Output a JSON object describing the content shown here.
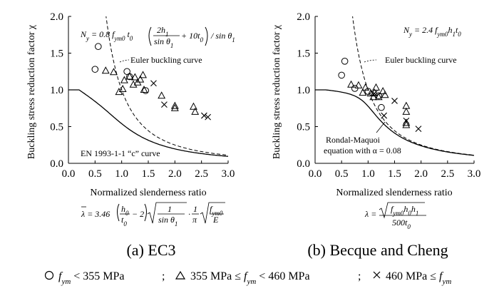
{
  "figure": {
    "caption_a": "(a) EC3",
    "caption_b": "(b) Becque and Cheng",
    "legend": {
      "circle_label": "f_ym < 355 MPa",
      "triangle_label": "355 MPa ≤ f_ym < 460 MPa",
      "cross_label": "460 MPa ≤ f_ym",
      "separator": ";"
    }
  },
  "chart_data": [
    {
      "type": "scatter",
      "panel": "a",
      "xlabel": "Normalized slenderness ratio",
      "ylabel": "Buckling stress reduction factor χ",
      "xlim": [
        0,
        3
      ],
      "ylim": [
        0,
        2
      ],
      "xticks": [
        "0.0",
        "0.5",
        "1.0",
        "1.5",
        "2.0",
        "2.5",
        "3.0"
      ],
      "yticks": [
        "0.0",
        "0.5",
        "1.0",
        "1.5",
        "2.0"
      ],
      "grid": false,
      "resistance_formula": "N_y = 0.8 f_ym0 t_0 (2h_1/sinθ_1 + 10t_0) / sinθ_1",
      "slenderness_formula": "λ̄ = 3.46 (h_0/t_0 − 2) √(1/sinθ_1) · (1/π) √(f_ym0/E)",
      "annotations": {
        "euler": "Euler buckling curve",
        "design": "EN 1993-1-1 “c” curve"
      },
      "design_alpha": 0.49,
      "series": [
        {
          "marker": "circle",
          "points": [
            [
              0.56,
              1.59
            ],
            [
              0.5,
              1.28
            ],
            [
              1.1,
              1.25
            ],
            [
              1.15,
              1.18
            ],
            [
              1.45,
              0.99
            ]
          ]
        },
        {
          "marker": "triangle",
          "points": [
            [
              0.7,
              1.26
            ],
            [
              0.85,
              1.24
            ],
            [
              0.95,
              0.97
            ],
            [
              1.02,
              1.01
            ],
            [
              1.05,
              1.13
            ],
            [
              1.15,
              1.18
            ],
            [
              1.22,
              1.07
            ],
            [
              1.25,
              1.17
            ],
            [
              1.3,
              1.1
            ],
            [
              1.35,
              1.14
            ],
            [
              1.4,
              1.2
            ],
            [
              1.42,
              1.0
            ],
            [
              1.75,
              0.92
            ],
            [
              2.0,
              0.78
            ],
            [
              2.0,
              0.75
            ],
            [
              2.35,
              0.77
            ],
            [
              2.38,
              0.7
            ]
          ]
        },
        {
          "marker": "cross",
          "points": [
            [
              1.6,
              1.09
            ],
            [
              1.8,
              0.8
            ],
            [
              2.55,
              0.65
            ],
            [
              2.62,
              0.63
            ]
          ]
        }
      ]
    },
    {
      "type": "scatter",
      "panel": "b",
      "xlabel": "Normalized slenderness ratio",
      "ylabel": "Buckling stress reduction factor χ",
      "xlim": [
        0,
        3
      ],
      "ylim": [
        0,
        2
      ],
      "xticks": [
        "0.0",
        "0.5",
        "1.0",
        "1.5",
        "2.0",
        "2.5",
        "3.0"
      ],
      "yticks": [
        "0.0",
        "0.5",
        "1.0",
        "1.5",
        "2.0"
      ],
      "grid": false,
      "resistance_formula": "N_y = 2.4 f_ym0 h_1 t_0",
      "slenderness_formula": "λ = √(f_ym0 h_0 h_1) / (500 t_0)",
      "annotations": {
        "euler": "Euler buckling curve",
        "design_line1": "Rondal-Maquoi",
        "design_line2": "equation with α = 0.08"
      },
      "design_alpha": 0.08,
      "series": [
        {
          "marker": "circle",
          "points": [
            [
              0.56,
              1.39
            ],
            [
              0.5,
              1.2
            ],
            [
              0.75,
              1.02
            ],
            [
              1.0,
              0.98
            ],
            [
              1.2,
              0.92
            ],
            [
              1.25,
              0.76
            ]
          ]
        },
        {
          "marker": "triangle",
          "points": [
            [
              0.68,
              1.07
            ],
            [
              0.82,
              1.06
            ],
            [
              0.9,
              0.96
            ],
            [
              0.95,
              1.03
            ],
            [
              1.05,
              0.95
            ],
            [
              1.1,
              0.9
            ],
            [
              1.12,
              0.96
            ],
            [
              1.15,
              1.03
            ],
            [
              1.2,
              0.9
            ],
            [
              1.28,
              0.98
            ],
            [
              1.32,
              0.93
            ],
            [
              1.72,
              0.78
            ],
            [
              1.72,
              0.7
            ],
            [
              1.72,
              0.55
            ],
            [
              1.72,
              0.52
            ]
          ]
        },
        {
          "marker": "cross",
          "points": [
            [
              1.12,
              0.95
            ],
            [
              1.3,
              0.65
            ],
            [
              1.5,
              0.85
            ],
            [
              1.72,
              0.58
            ],
            [
              1.95,
              0.47
            ]
          ]
        }
      ]
    }
  ]
}
